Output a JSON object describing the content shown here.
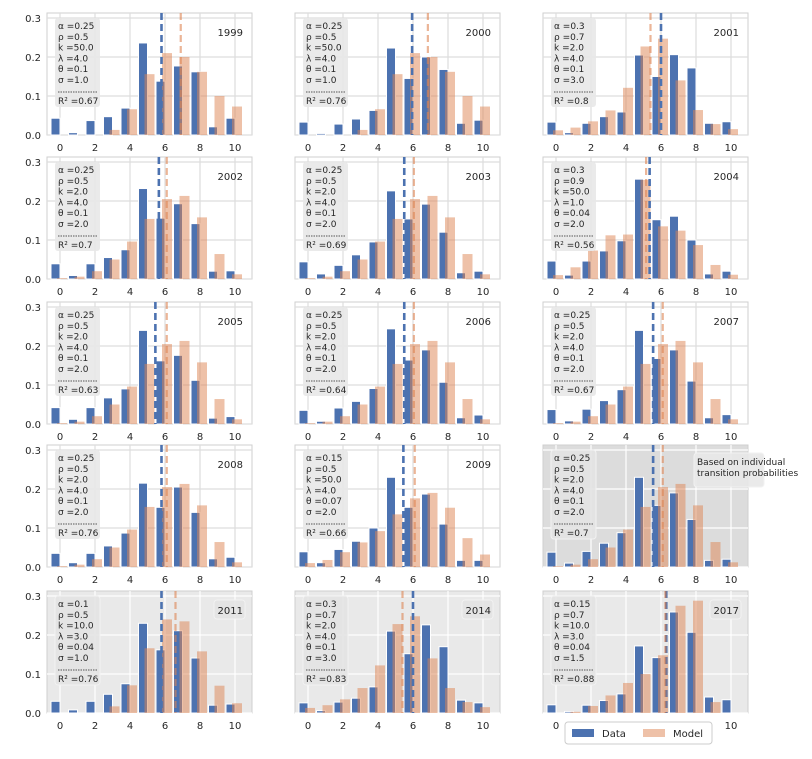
{
  "chart_data": {
    "type": "bar",
    "layout": "grid 5x3",
    "x": [
      0,
      1,
      2,
      3,
      4,
      5,
      6,
      7,
      8,
      9,
      10
    ],
    "xticks": [
      "0",
      "2",
      "4",
      "6",
      "8",
      "10"
    ],
    "yticks": [
      "0.0",
      "0.1",
      "0.2",
      "0.3"
    ],
    "ylim": [
      0,
      0.3
    ],
    "xlim": [
      -0.8,
      10.9
    ],
    "grid": true,
    "colors": {
      "data": "#4c72b0",
      "model": "#dd8452"
    },
    "legend": {
      "entries": [
        "Data",
        "Model"
      ],
      "placement": "bottom-right"
    },
    "panels": [
      {
        "title": "1999",
        "params": [
          "α =0.25",
          "ρ =0.5",
          "k =50.0",
          "λ =4.0",
          "θ =0.1",
          "σ =1.0"
        ],
        "r2": "R² =0.67",
        "shaded": false,
        "data": [
          0.043,
          0.006,
          0.037,
          0.047,
          0.069,
          0.236,
          0.138,
          0.177,
          0.162,
          0.021,
          0.043
        ],
        "model": [
          0,
          0,
          0,
          0.013,
          0.066,
          0.156,
          0.21,
          0.2,
          0.162,
          0.1,
          0.073
        ],
        "data_mean": 5.8,
        "model_mean": 6.9
      },
      {
        "title": "2000",
        "params": [
          "α =0.25",
          "ρ =0.5",
          "k =50.0",
          "λ =4.0",
          "θ =0.1",
          "σ =1.0"
        ],
        "r2": "R² =0.76",
        "shaded": false,
        "data": [
          0.033,
          0.004,
          0.028,
          0.041,
          0.063,
          0.223,
          0.145,
          0.2,
          0.168,
          0.03,
          0.038
        ],
        "model": [
          0,
          0,
          0,
          0.013,
          0.066,
          0.156,
          0.21,
          0.2,
          0.162,
          0.1,
          0.073
        ],
        "data_mean": 5.95,
        "model_mean": 6.85
      },
      {
        "title": "2001",
        "params": [
          "α =0.3",
          "ρ =0.7",
          "k =2.0",
          "λ =4.0",
          "θ =0.1",
          "σ =3.0"
        ],
        "r2": "R² =0.8",
        "shaded": false,
        "data": [
          0.033,
          0.006,
          0.03,
          0.047,
          0.059,
          0.205,
          0.15,
          0.206,
          0.172,
          0.03,
          0.034
        ],
        "model": [
          0.012,
          0.019,
          0.035,
          0.063,
          0.121,
          0.227,
          0.247,
          0.14,
          0.064,
          0.028,
          0.015
        ],
        "data_mean": 6.0,
        "model_mean": 5.4
      },
      {
        "title": "2002",
        "params": [
          "α =0.25",
          "ρ =0.5",
          "k =2.0",
          "λ =4.0",
          "θ =0.1",
          "σ =2.0"
        ],
        "r2": "R² =0.7",
        "shaded": false,
        "data": [
          0.039,
          0.009,
          0.039,
          0.055,
          0.075,
          0.232,
          0.156,
          0.193,
          0.142,
          0.02,
          0.021
        ],
        "model": [
          0.002,
          0.006,
          0.02,
          0.05,
          0.096,
          0.154,
          0.205,
          0.213,
          0.158,
          0.064,
          0.012
        ],
        "data_mean": 5.65,
        "model_mean": 6.1
      },
      {
        "title": "2003",
        "params": [
          "α =0.25",
          "ρ =0.5",
          "k =2.0",
          "λ =4.0",
          "θ =0.1",
          "σ =2.0"
        ],
        "r2": "R² =0.69",
        "shaded": false,
        "data": [
          0.044,
          0.013,
          0.035,
          0.062,
          0.095,
          0.226,
          0.154,
          0.192,
          0.12,
          0.016,
          0.02
        ],
        "model": [
          0.002,
          0.006,
          0.02,
          0.05,
          0.096,
          0.154,
          0.205,
          0.213,
          0.158,
          0.064,
          0.012
        ],
        "data_mean": 5.5,
        "model_mean": 6.05
      },
      {
        "title": "2004",
        "params": [
          "α =0.3",
          "ρ =0.9",
          "k =50.0",
          "λ =1.0",
          "θ =0.04",
          "σ =2.0"
        ],
        "r2": "R² =0.56",
        "shaded": false,
        "data": [
          0.046,
          0.01,
          0.046,
          0.072,
          0.098,
          0.256,
          0.152,
          0.161,
          0.1,
          0.013,
          0.02
        ],
        "model": [
          0.01,
          0.03,
          0.073,
          0.112,
          0.114,
          0.254,
          0.135,
          0.124,
          0.087,
          0.036,
          0.011
        ],
        "data_mean": 5.35,
        "model_mean": 5.15
      },
      {
        "title": "2005",
        "params": [
          "α =0.25",
          "ρ =0.5",
          "k =2.0",
          "λ =4.0",
          "θ =0.1",
          "σ =2.0"
        ],
        "r2": "R² =0.63",
        "shaded": false,
        "data": [
          0.042,
          0.012,
          0.042,
          0.067,
          0.09,
          0.24,
          0.162,
          0.176,
          0.112,
          0.015,
          0.019
        ],
        "model": [
          0.002,
          0.006,
          0.02,
          0.05,
          0.096,
          0.154,
          0.205,
          0.213,
          0.158,
          0.064,
          0.012
        ],
        "data_mean": 5.45,
        "model_mean": 6.1
      },
      {
        "title": "2006",
        "params": [
          "α =0.25",
          "ρ =0.5",
          "k =2.0",
          "λ =4.0",
          "θ =0.1",
          "σ =2.0"
        ],
        "r2": "R² =0.64",
        "shaded": false,
        "data": [
          0.035,
          0.007,
          0.041,
          0.058,
          0.091,
          0.244,
          0.164,
          0.19,
          0.107,
          0.016,
          0.023
        ],
        "model": [
          0.002,
          0.006,
          0.02,
          0.05,
          0.096,
          0.154,
          0.205,
          0.213,
          0.158,
          0.064,
          0.012
        ],
        "data_mean": 5.5,
        "model_mean": 6.05
      },
      {
        "title": "2007",
        "params": [
          "α =0.25",
          "ρ =0.5",
          "k =2.0",
          "λ =4.0",
          "θ =0.1",
          "σ =2.0"
        ],
        "r2": "R² =0.67",
        "shaded": false,
        "data": [
          0.037,
          0.008,
          0.038,
          0.06,
          0.088,
          0.24,
          0.168,
          0.19,
          0.11,
          0.016,
          0.024
        ],
        "model": [
          0.002,
          0.006,
          0.02,
          0.05,
          0.096,
          0.154,
          0.205,
          0.213,
          0.158,
          0.064,
          0.012
        ],
        "data_mean": 5.55,
        "model_mean": 6.1
      },
      {
        "title": "2008",
        "params": [
          "α =0.25",
          "ρ =0.5",
          "k =2.0",
          "λ =4.0",
          "θ =0.1",
          "σ =2.0"
        ],
        "r2": "R² =0.76",
        "shaded": false,
        "data": [
          0.035,
          0.011,
          0.035,
          0.054,
          0.087,
          0.215,
          0.153,
          0.205,
          0.14,
          0.021,
          0.025
        ],
        "model": [
          0.002,
          0.006,
          0.02,
          0.05,
          0.096,
          0.154,
          0.205,
          0.213,
          0.158,
          0.064,
          0.012
        ],
        "data_mean": 5.8,
        "model_mean": 6.1
      },
      {
        "title": "2009",
        "params": [
          "α =0.15",
          "ρ =0.5",
          "k =50.0",
          "λ =4.0",
          "θ =0.07",
          "σ =2.0"
        ],
        "r2": "R² =0.66",
        "shaded": false,
        "data": [
          0.039,
          0.011,
          0.045,
          0.066,
          0.1,
          0.23,
          0.153,
          0.187,
          0.11,
          0.017,
          0.017
        ],
        "model": [
          0.01,
          0.018,
          0.038,
          0.063,
          0.092,
          0.135,
          0.176,
          0.19,
          0.152,
          0.074,
          0.032
        ],
        "data_mean": 5.45,
        "model_mean": 6.1
      },
      {
        "title": "Based on individual\ntransition probabilities",
        "params": [
          "α =0.25",
          "ρ =0.5",
          "k =2.0",
          "λ =4.0",
          "θ =0.1",
          "σ =2.0"
        ],
        "r2": "R² =0.7",
        "shaded": "dark",
        "data": [
          0.038,
          0.01,
          0.04,
          0.061,
          0.088,
          0.23,
          0.158,
          0.19,
          0.122,
          0.017,
          0.02
        ],
        "model": [
          0.002,
          0.006,
          0.02,
          0.05,
          0.096,
          0.154,
          0.205,
          0.213,
          0.158,
          0.064,
          0.012
        ],
        "data_mean": 5.55,
        "model_mean": 6.1
      },
      {
        "title": "2011",
        "params": [
          "α =0.1",
          "ρ =0.5",
          "k =10.0",
          "λ =3.0",
          "θ =0.04",
          "σ =1.0"
        ],
        "r2": "R² =0.76",
        "shaded": "light",
        "data": [
          0.03,
          0.008,
          0.03,
          0.048,
          0.075,
          0.23,
          0.162,
          0.211,
          0.141,
          0.02,
          0.023
        ],
        "model": [
          0,
          0,
          0,
          0.017,
          0.071,
          0.166,
          0.24,
          0.235,
          0.158,
          0.07,
          0.025
        ],
        "data_mean": 5.8,
        "model_mean": 6.6
      },
      {
        "title": "2014",
        "params": [
          "α =0.3",
          "ρ =0.7",
          "k =2.0",
          "λ =4.0",
          "θ =0.1",
          "σ =3.0"
        ],
        "r2": "R² =0.83",
        "shaded": "light",
        "data": [
          0.026,
          0.006,
          0.028,
          0.038,
          0.067,
          0.21,
          0.152,
          0.226,
          0.17,
          0.033,
          0.026
        ],
        "model": [
          0.013,
          0.02,
          0.035,
          0.064,
          0.122,
          0.228,
          0.248,
          0.14,
          0.064,
          0.028,
          0.015
        ],
        "data_mean": 6.0,
        "model_mean": 5.4
      },
      {
        "title": "2017",
        "params": [
          "α =0.15",
          "ρ =0.7",
          "k =10.0",
          "λ =3.0",
          "θ =0.04",
          "σ =1.5"
        ],
        "r2": "R² =0.88",
        "shaded": "light",
        "data": [
          0.021,
          0.004,
          0.02,
          0.032,
          0.049,
          0.172,
          0.142,
          0.259,
          0.207,
          0.041,
          0.034
        ],
        "model": [
          0,
          0.003,
          0.018,
          0.045,
          0.077,
          0.1,
          0.148,
          0.275,
          0.288,
          0.028,
          0
        ],
        "data_mean": 6.3,
        "model_mean": 6.25
      }
    ]
  }
}
